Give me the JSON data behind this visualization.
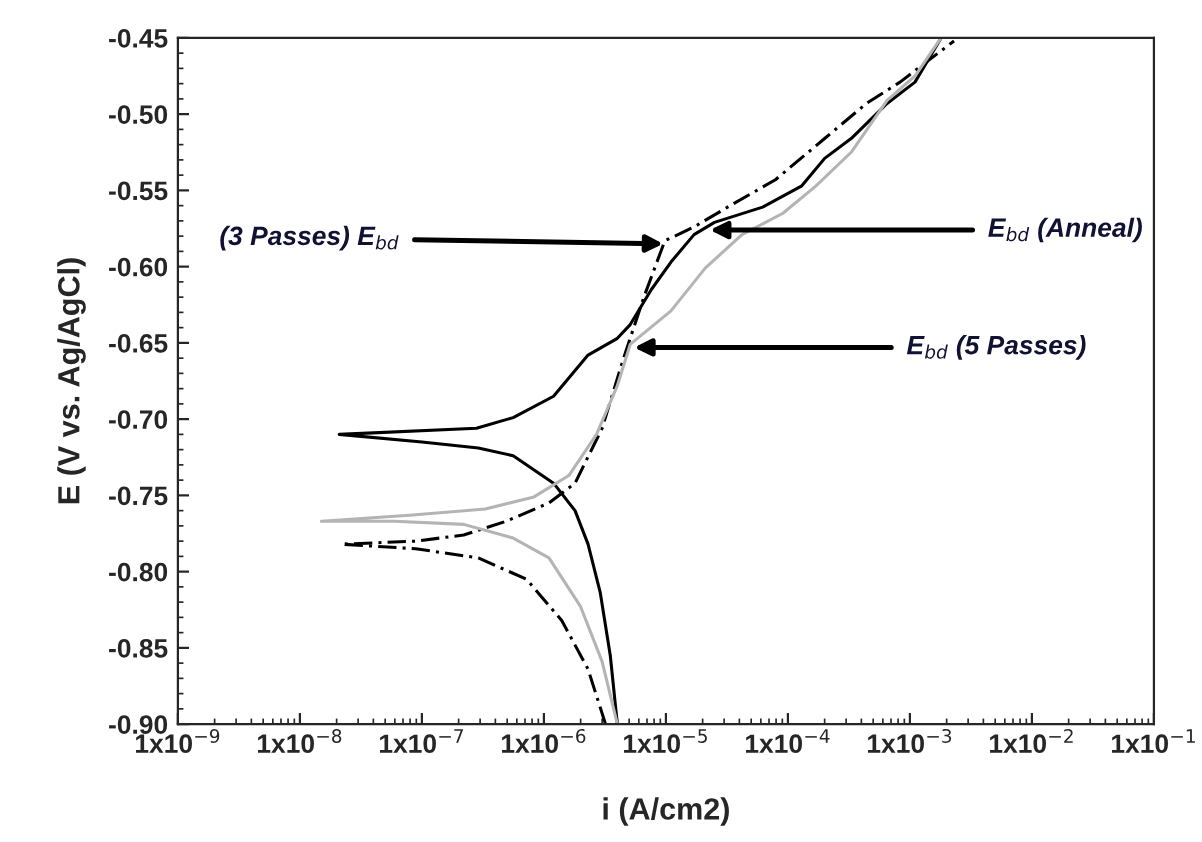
{
  "chart_data": {
    "type": "line",
    "xlabel": "i (A/cm2)",
    "ylabel": "E (V vs. Ag/AgCl)",
    "log": "x",
    "grid": false,
    "legend": false,
    "marker": "none",
    "xlim": [
      1e-09,
      0.1
    ],
    "xticks": [
      {
        "value": 1e-09,
        "label": "1x10$^{−9}$"
      },
      {
        "value": 1e-08,
        "label": "1x10$^{−8}$"
      },
      {
        "value": 1e-07,
        "label": "1x10$^{−7}$"
      },
      {
        "value": 1e-06,
        "label": "1x10$^{−6}$"
      },
      {
        "value": 1e-05,
        "label": "1x10$^{−5}$"
      },
      {
        "value": 0.0001,
        "label": "1x10$^{−4}$"
      },
      {
        "value": 0.001,
        "label": "1x10$^{−3}$"
      },
      {
        "value": 0.01,
        "label": "1x10$^{−2}$"
      },
      {
        "value": 0.1,
        "label": "1x10$^{−1}$"
      }
    ],
    "ylim": [
      -0.9,
      -0.45
    ],
    "yticks": [
      {
        "value": -0.9,
        "label": "-0.90"
      },
      {
        "value": -0.85,
        "label": "-0.85"
      },
      {
        "value": -0.8,
        "label": "-0.80"
      },
      {
        "value": -0.75,
        "label": "-0.75"
      },
      {
        "value": -0.7,
        "label": "-0.70"
      },
      {
        "value": -0.65,
        "label": "-0.65"
      },
      {
        "value": -0.6,
        "label": "-0.60"
      },
      {
        "value": -0.55,
        "label": "-0.55"
      },
      {
        "value": -0.5,
        "label": "-0.50"
      },
      {
        "value": -0.45,
        "label": "-0.45"
      }
    ],
    "series": [
      {
        "color": "#000000",
        "line_style": "solid",
        "x": [
          4e-06,
          3.5e-06,
          2.9e-06,
          2.3e-06,
          1.8e-06,
          1.2e-06,
          5.6e-07,
          2.9e-07,
          1e-07,
          2.1e-08,
          2.8e-07,
          5.6e-07,
          1.2e-06,
          2.3e-06,
          4e-06,
          5.1e-06,
          7.6e-06,
          1.1e-05,
          1.7e-05,
          2.5e-05,
          6.2e-05,
          0.00013,
          0.0002,
          0.00033,
          0.00065,
          0.0011,
          0.0018
        ],
        "values": [
          -0.9,
          -0.855,
          -0.814,
          -0.782,
          -0.76,
          -0.742,
          -0.724,
          -0.719,
          -0.715,
          -0.71,
          -0.706,
          -0.699,
          -0.685,
          -0.658,
          -0.647,
          -0.638,
          -0.615,
          -0.597,
          -0.579,
          -0.571,
          -0.561,
          -0.547,
          -0.529,
          -0.516,
          -0.493,
          -0.479,
          -0.45
        ]
      },
      {
        "color": "#000000",
        "line_style": "dashed",
        "x": [
          3.2e-06,
          2.3e-06,
          1.4e-06,
          7.2e-07,
          2.9e-07,
          8.9e-08,
          2.2e-08,
          8.9e-08,
          2.2e-07,
          4.9e-07,
          1.1e-06,
          1.8e-06,
          3e-06,
          4.5e-06,
          6.6e-06,
          9.8e-06,
          1.7e-05,
          3.2e-05,
          7.9e-05,
          0.0002,
          0.00044,
          0.00083,
          0.0023
        ],
        "values": [
          -0.9,
          -0.864,
          -0.832,
          -0.805,
          -0.791,
          -0.785,
          -0.782,
          -0.78,
          -0.776,
          -0.767,
          -0.755,
          -0.742,
          -0.706,
          -0.66,
          -0.62,
          -0.583,
          -0.574,
          -0.561,
          -0.543,
          -0.516,
          -0.493,
          -0.479,
          -0.452
        ]
      },
      {
        "color": "#b4b4b4",
        "line_style": "solid",
        "x": [
          4e-06,
          3e-06,
          2e-06,
          1.1e-06,
          5.6e-07,
          2.2e-07,
          6e-08,
          1.5e-08,
          7.9e-08,
          3.3e-07,
          8.3e-07,
          1.6e-06,
          2.7e-06,
          4e-06,
          5.1e-06,
          1.1e-05,
          2.1e-05,
          4.2e-05,
          9.1e-05,
          0.00017,
          0.00033,
          0.00065,
          0.0011,
          0.0018
        ],
        "values": [
          -0.9,
          -0.859,
          -0.823,
          -0.791,
          -0.778,
          -0.769,
          -0.767,
          -0.767,
          -0.763,
          -0.759,
          -0.751,
          -0.737,
          -0.71,
          -0.678,
          -0.651,
          -0.629,
          -0.601,
          -0.579,
          -0.565,
          -0.547,
          -0.525,
          -0.491,
          -0.475,
          -0.45
        ]
      }
    ],
    "annotations": [
      {
        "text": "(3 Passes) E$_{bd}$",
        "x": 9.5e-06,
        "y": -0.585
      },
      {
        "text": "E$_{bd}$ (Anneal)",
        "x": 2.3e-05,
        "y": -0.576
      },
      {
        "text": "E$_{bd}$ (5 Passes)",
        "x": 5.5e-06,
        "y": -0.653
      }
    ]
  }
}
